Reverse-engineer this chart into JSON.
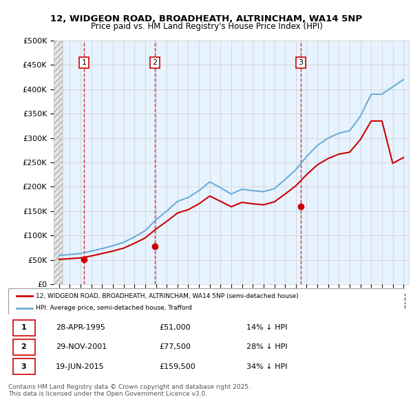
{
  "title1": "12, WIDGEON ROAD, BROADHEATH, ALTRINCHAM, WA14 5NP",
  "title2": "Price paid vs. HM Land Registry's House Price Index (HPI)",
  "ylabel": "",
  "xlabel": "",
  "ylim": [
    0,
    500000
  ],
  "yticks": [
    0,
    50000,
    100000,
    150000,
    200000,
    250000,
    300000,
    350000,
    400000,
    450000,
    500000
  ],
  "ytick_labels": [
    "£0",
    "£50K",
    "£100K",
    "£150K",
    "£200K",
    "£250K",
    "£300K",
    "£350K",
    "£400K",
    "£450K",
    "£500K"
  ],
  "xlim_start": 1993,
  "xlim_end": 2026,
  "sale_dates": [
    1995.32,
    2001.91,
    2015.46
  ],
  "sale_prices": [
    51000,
    77500,
    159500
  ],
  "sale_labels": [
    "1",
    "2",
    "3"
  ],
  "hpi_color": "#6baed6",
  "price_color": "#cc0000",
  "dashed_line_color": "#cc0000",
  "background_left_color": "#e8e8e8",
  "background_right_color": "#ddeeff",
  "legend_label_price": "12, WIDGEON ROAD, BROADHEATH, ALTRINCHAM, WA14 5NP (semi-detached house)",
  "legend_label_hpi": "HPI: Average price, semi-detached house, Trafford",
  "table_data": [
    [
      "1",
      "28-APR-1995",
      "£51,000",
      "14% ↓ HPI"
    ],
    [
      "2",
      "29-NOV-2001",
      "£77,500",
      "28% ↓ HPI"
    ],
    [
      "3",
      "19-JUN-2015",
      "£159,500",
      "34% ↓ HPI"
    ]
  ],
  "footnote": "Contains HM Land Registry data © Crown copyright and database right 2025.\nThis data is licensed under the Open Government Licence v3.0.",
  "hpi_years": [
    1993,
    1994,
    1995,
    1996,
    1997,
    1998,
    1999,
    2000,
    2001,
    2002,
    2003,
    2004,
    2005,
    2006,
    2007,
    2008,
    2009,
    2010,
    2011,
    2012,
    2013,
    2014,
    2015,
    2016,
    2017,
    2018,
    2019,
    2020,
    2021,
    2022,
    2023,
    2024,
    2025
  ],
  "hpi_values": [
    59000,
    61000,
    63000,
    68000,
    73000,
    79000,
    86000,
    97000,
    110000,
    132000,
    150000,
    170000,
    178000,
    192000,
    210000,
    198000,
    185000,
    195000,
    192000,
    190000,
    196000,
    215000,
    235000,
    262000,
    285000,
    300000,
    310000,
    315000,
    345000,
    390000,
    390000,
    405000,
    420000
  ],
  "price_years": [
    1993,
    1994,
    1995,
    1996,
    1997,
    1998,
    1999,
    2000,
    2001,
    2002,
    2003,
    2004,
    2005,
    2006,
    2007,
    2008,
    2009,
    2010,
    2011,
    2012,
    2013,
    2014,
    2015,
    2016,
    2017,
    2018,
    2019,
    2020,
    2021,
    2022,
    2023,
    2024,
    2025
  ],
  "price_indexed": [
    51000,
    52500,
    54000,
    58000,
    63000,
    68000,
    74000,
    84000,
    95000,
    113000,
    129000,
    146000,
    153000,
    165000,
    181000,
    170000,
    159000,
    168000,
    165000,
    163000,
    169000,
    185000,
    202000,
    225000,
    245000,
    258000,
    267000,
    271000,
    297000,
    335000,
    335000,
    248000,
    260000
  ]
}
